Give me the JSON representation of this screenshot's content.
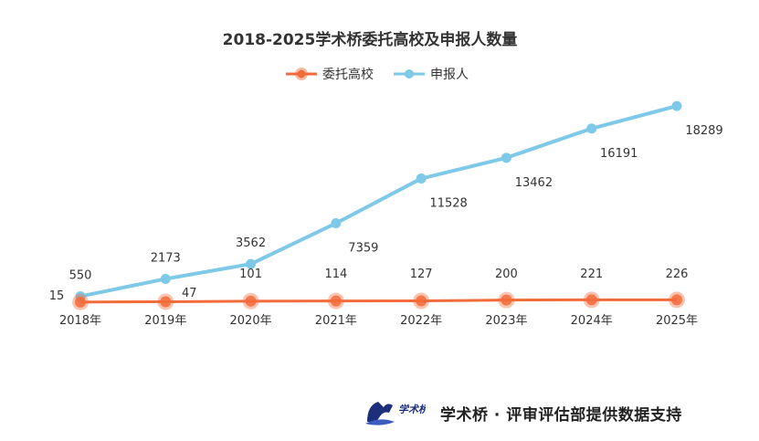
{
  "chart_data": {
    "type": "line",
    "title": "2018-2025学术桥委托高校及申报人数量",
    "categories": [
      "2018年",
      "2019年",
      "2020年",
      "2021年",
      "2022年",
      "2023年",
      "2024年",
      "2025年"
    ],
    "series": [
      {
        "name": "委托高校",
        "color": "#F26B3A",
        "values": [
          15,
          47,
          101,
          114,
          127,
          200,
          221,
          226
        ]
      },
      {
        "name": "申报人",
        "color": "#7EC8E8",
        "values": [
          550,
          2173,
          3562,
          7359,
          11528,
          13462,
          16191,
          18289
        ]
      }
    ],
    "ylim": [
      0,
      20000
    ],
    "grid": false,
    "legend": "top-center",
    "value_labels": true
  },
  "footer": {
    "logo_text": "学术桥",
    "text": "学术桥 · 评审评估部提供数据支持"
  }
}
